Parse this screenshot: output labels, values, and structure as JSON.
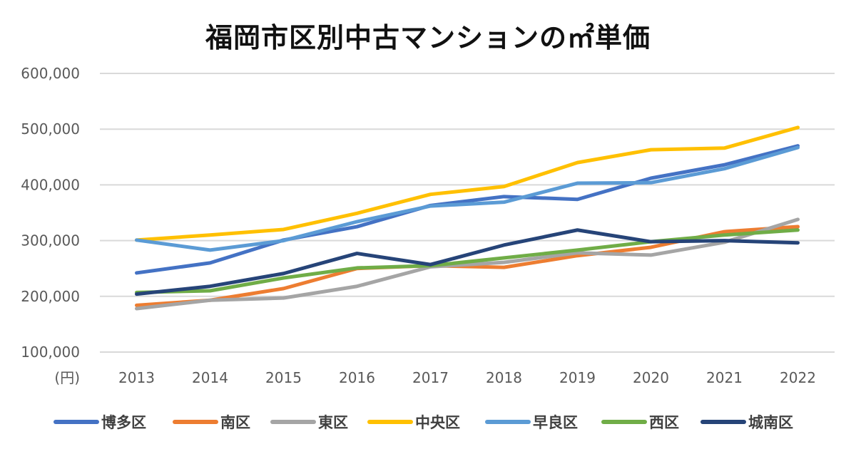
{
  "chart_data": {
    "type": "line",
    "title": "福岡市区別中古マンションの㎡単価",
    "ylabel": "(円)",
    "xlabel": "",
    "categories": [
      "2013",
      "2014",
      "2015",
      "2016",
      "2017",
      "2018",
      "2019",
      "2020",
      "2021",
      "2022"
    ],
    "ylim": [
      100000,
      600000
    ],
    "yticks": [
      "100,000",
      "200,000",
      "300,000",
      "400,000",
      "500,000",
      "600,000"
    ],
    "grid": true,
    "legend_position": "bottom",
    "series": [
      {
        "name": "博多区",
        "color": "#4472C4",
        "values": [
          242000,
          260000,
          301000,
          325000,
          363000,
          379000,
          374000,
          412000,
          436000,
          470000
        ]
      },
      {
        "name": "南区",
        "color": "#ED7D31",
        "values": [
          184000,
          193000,
          214000,
          250000,
          255000,
          252000,
          273000,
          288000,
          316000,
          325000
        ]
      },
      {
        "name": "東区",
        "color": "#A5A5A5",
        "values": [
          178000,
          193000,
          197000,
          218000,
          253000,
          261000,
          278000,
          274000,
          297000,
          338000
        ]
      },
      {
        "name": "中央区",
        "color": "#FFC000",
        "values": [
          301000,
          310000,
          320000,
          349000,
          383000,
          397000,
          440000,
          463000,
          466000,
          503000
        ]
      },
      {
        "name": "早良区",
        "color": "#5B9BD5",
        "values": [
          301000,
          283000,
          300000,
          334000,
          362000,
          369000,
          403000,
          404000,
          429000,
          467000
        ]
      },
      {
        "name": "西区",
        "color": "#70AD47",
        "values": [
          207000,
          210000,
          233000,
          251000,
          255000,
          269000,
          283000,
          298000,
          310000,
          319000
        ]
      },
      {
        "name": "城南区",
        "color": "#264478",
        "values": [
          204000,
          218000,
          241000,
          277000,
          257000,
          292000,
          319000,
          298000,
          300000,
          296000
        ]
      }
    ]
  }
}
